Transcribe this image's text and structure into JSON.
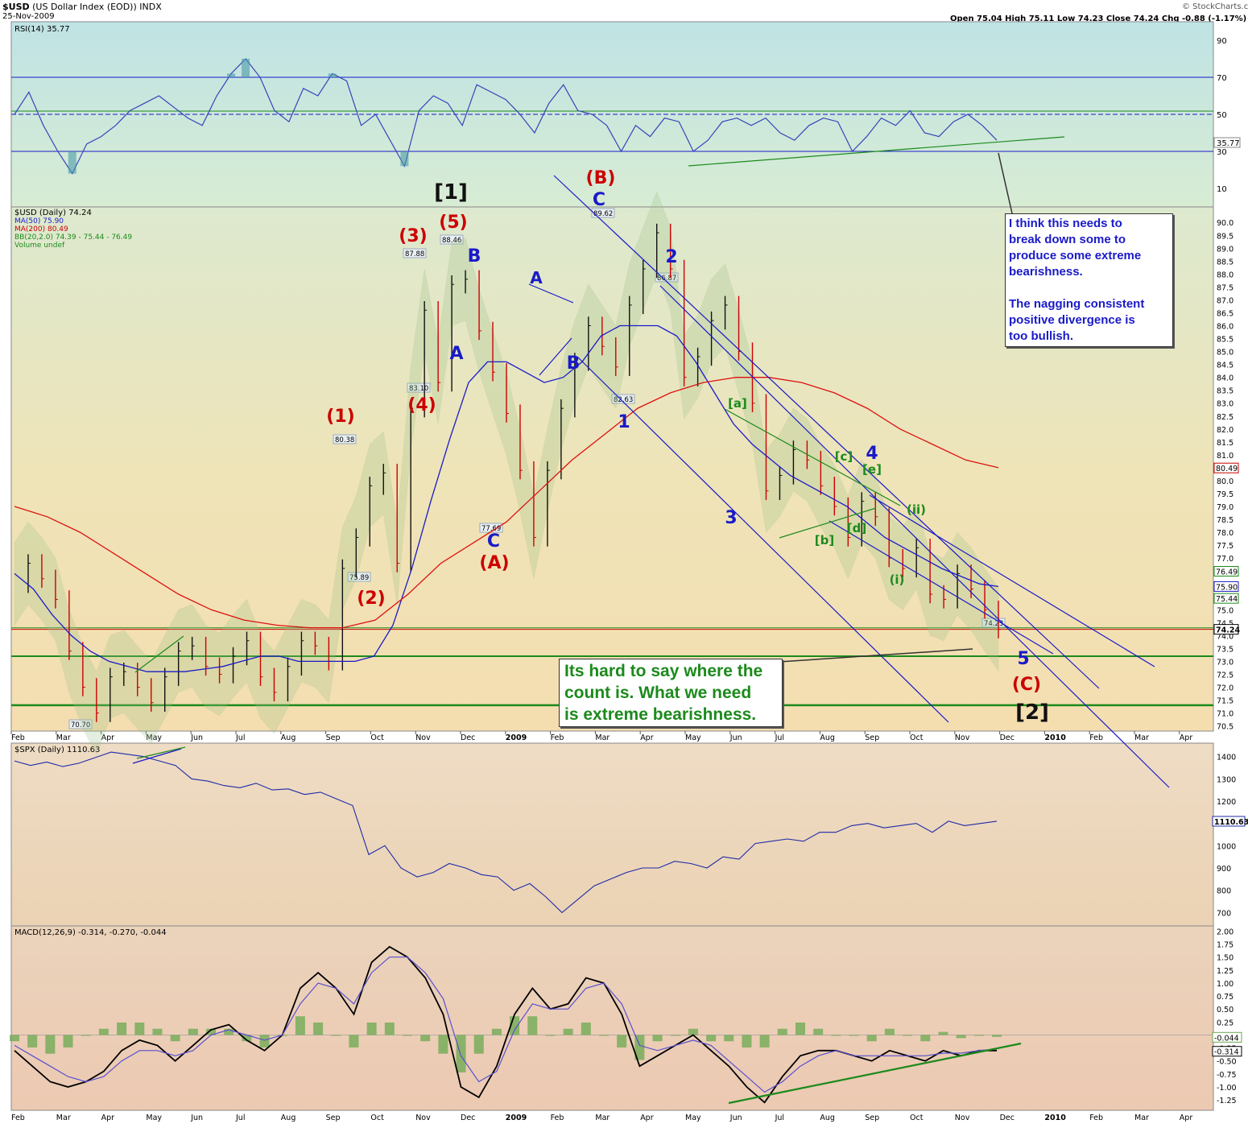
{
  "header": {
    "symbol": "$USD",
    "name": "(US Dollar Index (EOD))",
    "exchange": "INDX",
    "date": "25-Nov-2009",
    "ohlc": "Open 75.04  High 75.11  Low 74.23  Close 74.24  Chg -0.88 (-1.17%)",
    "watermark": "© StockCharts.com"
  },
  "colors": {
    "red": "#cc0000",
    "blue": "#1a1ac8",
    "green": "#1c8a1c",
    "black": "#111111"
  },
  "chart_data": [
    {
      "type": "line",
      "panel": "RSI",
      "legend": "RSI(14) 35.77",
      "ylim": [
        0,
        100
      ],
      "y_ticks": [
        "90",
        "70",
        "50",
        "30",
        "10"
      ],
      "last_value": "35.77",
      "series": [
        {
          "name": "RSI(14)",
          "values": [
            50,
            62,
            44,
            30,
            18,
            34,
            38,
            44,
            52,
            56,
            60,
            54,
            48,
            44,
            60,
            72,
            80,
            70,
            52,
            46,
            64,
            60,
            72,
            68,
            44,
            50,
            36,
            22,
            52,
            60,
            56,
            44,
            66,
            62,
            58,
            50,
            40,
            56,
            66,
            52,
            50,
            44,
            30,
            44,
            38,
            48,
            46,
            30,
            36,
            46,
            48,
            44,
            48,
            40,
            36,
            44,
            48,
            46,
            30,
            38,
            48,
            44,
            52,
            40,
            38,
            46,
            50,
            44,
            36
          ]
        }
      ]
    },
    {
      "type": "line",
      "panel": "Price",
      "legend": [
        "$USD (Daily) 74.24",
        "MA(50) 75.90",
        "MA(200) 80.49",
        "BB(20,2.0) 74.39 - 75.44 - 76.49",
        "Volume undef"
      ],
      "ylim": [
        70.3,
        90.6
      ],
      "y_ticks": [
        "90.0",
        "89.5",
        "89.0",
        "88.5",
        "88.0",
        "87.5",
        "87.0",
        "86.5",
        "86.0",
        "85.5",
        "85.0",
        "84.5",
        "84.0",
        "83.5",
        "83.0",
        "82.5",
        "82.0",
        "81.5",
        "81.0",
        "80.5",
        "80.0",
        "79.5",
        "79.0",
        "78.5",
        "78.0",
        "77.5",
        "77.0",
        "76.5",
        "76.0",
        "75.5",
        "75.0",
        "74.5",
        "74.0",
        "73.5",
        "73.0",
        "72.5",
        "72.0",
        "71.5",
        "71.0",
        "70.5"
      ],
      "x_labels": [
        "Feb",
        "Mar",
        "Apr",
        "May",
        "Jun",
        "Jul",
        "Aug",
        "Sep",
        "Oct",
        "Nov",
        "Dec",
        "2009",
        "Feb",
        "Mar",
        "Apr",
        "May",
        "Jun",
        "Jul",
        "Aug",
        "Sep",
        "Oct",
        "Nov",
        "Dec",
        "2010",
        "Feb",
        "Mar",
        "Apr"
      ],
      "value_tags": [
        "80.49",
        "76.49",
        "75.90",
        "75.44",
        "74.24"
      ],
      "price_labels": [
        "89.62",
        "88.46",
        "87.88",
        "86.87",
        "83.10",
        "82.63",
        "80.38",
        "77.69",
        "75.89",
        "74.23",
        "70.70"
      ],
      "series": [
        {
          "name": "$USD",
          "values": [
            76.0,
            76.8,
            76.2,
            75.4,
            73.4,
            72.0,
            71.0,
            72.4,
            72.6,
            72.0,
            71.4,
            72.4,
            73.4,
            73.6,
            72.8,
            72.5,
            73.2,
            73.8,
            72.4,
            71.8,
            72.8,
            73.8,
            73.6,
            73.0,
            76.6,
            77.8,
            79.8,
            80.3,
            76.8,
            82.8,
            86.6,
            83.8,
            87.6,
            87.8,
            85.8,
            84.2,
            82.6,
            80.4,
            77.8,
            80.4,
            82.8,
            84.6,
            86.0,
            85.2,
            84.4,
            86.8,
            88.2,
            89.6,
            88.2,
            84.0,
            84.8,
            86.2,
            86.8,
            85.0,
            83.0,
            79.6,
            80.2,
            81.2,
            80.8,
            79.8,
            79.0,
            77.8,
            79.2,
            78.6,
            77.0,
            76.6,
            77.4,
            75.6,
            75.4,
            76.4,
            75.8,
            75.0,
            74.24
          ]
        },
        {
          "name": "MA(50)",
          "values": [
            76.4,
            75.8,
            74.8,
            74.0,
            73.4,
            73.0,
            72.8,
            72.6,
            72.6,
            72.6,
            72.7,
            72.8,
            73.0,
            73.2,
            73.2,
            73.0,
            73.0,
            73.0,
            73.0,
            73.2,
            74.4,
            76.6,
            79.2,
            81.6,
            83.8,
            84.6,
            84.6,
            84.2,
            83.8,
            84.0,
            84.6,
            85.6,
            86.0,
            86.0,
            86.0,
            85.6,
            84.6,
            83.4,
            82.2,
            81.4,
            80.8,
            80.2,
            79.8,
            79.4,
            79.0,
            78.4,
            77.8,
            77.4,
            77.0,
            76.6,
            76.3,
            76.0,
            75.9
          ]
        },
        {
          "name": "MA(200)",
          "values": [
            79.0,
            78.6,
            78.0,
            77.2,
            76.4,
            75.6,
            75.0,
            74.6,
            74.4,
            74.3,
            74.3,
            74.6,
            75.6,
            76.8,
            77.6,
            78.4,
            79.6,
            80.8,
            81.8,
            82.8,
            83.4,
            83.8,
            84.0,
            84.0,
            83.8,
            83.4,
            82.8,
            82.0,
            81.4,
            80.8,
            80.5
          ]
        }
      ]
    },
    {
      "type": "line",
      "panel": "SPX",
      "legend": "$SPX (Daily) 1110.63",
      "ylim": [
        640,
        1460
      ],
      "y_ticks": [
        "1400",
        "1300",
        "1200",
        "1100",
        "1000",
        "900",
        "800",
        "700"
      ],
      "last_value": "1110.63",
      "series": [
        {
          "name": "$SPX",
          "values": [
            1380,
            1360,
            1375,
            1355,
            1370,
            1395,
            1420,
            1410,
            1400,
            1380,
            1360,
            1300,
            1290,
            1270,
            1260,
            1280,
            1250,
            1255,
            1230,
            1240,
            1210,
            1180,
            960,
            1000,
            900,
            860,
            880,
            920,
            900,
            870,
            860,
            800,
            830,
            770,
            700,
            760,
            820,
            850,
            880,
            900,
            900,
            930,
            920,
            900,
            950,
            940,
            1010,
            1020,
            1030,
            1020,
            1060,
            1060,
            1090,
            1100,
            1080,
            1090,
            1100,
            1060,
            1110,
            1090,
            1100,
            1110
          ]
        }
      ]
    },
    {
      "type": "line",
      "panel": "MACD",
      "legend": "MACD(12,26,9) -0.314, -0.270, -0.044",
      "ylim": [
        -1.45,
        2.1
      ],
      "y_ticks": [
        "2.00",
        "1.75",
        "1.50",
        "1.25",
        "1.00",
        "0.75",
        "0.50",
        "0.25",
        "0.00",
        "-0.25",
        "-0.50",
        "-0.75",
        "-1.00",
        "-1.25"
      ],
      "value_tags": [
        "-0.044",
        "-0.314"
      ],
      "series": [
        {
          "name": "MACD",
          "values": [
            -0.3,
            -0.6,
            -0.9,
            -1.0,
            -0.9,
            -0.7,
            -0.3,
            -0.1,
            -0.2,
            -0.5,
            -0.2,
            0.1,
            0.2,
            -0.1,
            -0.3,
            0.0,
            0.9,
            1.2,
            0.9,
            0.4,
            1.4,
            1.7,
            1.5,
            1.1,
            0.4,
            -1.0,
            -1.2,
            -0.6,
            0.4,
            0.9,
            0.5,
            0.6,
            1.1,
            1.0,
            0.4,
            -0.6,
            -0.4,
            -0.2,
            0.0,
            -0.3,
            -0.6,
            -1.0,
            -1.3,
            -0.8,
            -0.4,
            -0.3,
            -0.3,
            -0.4,
            -0.5,
            -0.3,
            -0.4,
            -0.5,
            -0.3,
            -0.4,
            -0.3,
            -0.3
          ]
        },
        {
          "name": "Signal",
          "values": [
            -0.2,
            -0.4,
            -0.6,
            -0.8,
            -0.9,
            -0.8,
            -0.5,
            -0.3,
            -0.3,
            -0.4,
            -0.3,
            0.0,
            0.1,
            0.0,
            -0.1,
            0.0,
            0.6,
            1.0,
            0.9,
            0.6,
            1.2,
            1.5,
            1.5,
            1.2,
            0.7,
            -0.4,
            -0.9,
            -0.7,
            0.1,
            0.6,
            0.5,
            0.5,
            0.9,
            1.0,
            0.6,
            -0.2,
            -0.3,
            -0.2,
            -0.1,
            -0.2,
            -0.5,
            -0.8,
            -1.1,
            -0.9,
            -0.6,
            -0.4,
            -0.3,
            -0.4,
            -0.4,
            -0.4,
            -0.4,
            -0.4,
            -0.35,
            -0.35,
            -0.3,
            -0.27
          ]
        }
      ]
    }
  ],
  "annotations": {
    "wave_labels": [
      {
        "text": "[1]",
        "color": "black"
      },
      {
        "text": "(B)",
        "color": "red"
      },
      {
        "text": "C",
        "color": "blue"
      },
      {
        "text": "(5)",
        "color": "red"
      },
      {
        "text": "(3)",
        "color": "red"
      },
      {
        "text": "B",
        "color": "blue"
      },
      {
        "text": "A",
        "color": "blue"
      },
      {
        "text": "2",
        "color": "blue"
      },
      {
        "text": "A",
        "color": "blue"
      },
      {
        "text": "B",
        "color": "blue"
      },
      {
        "text": "1",
        "color": "blue"
      },
      {
        "text": "(4)",
        "color": "red"
      },
      {
        "text": "(1)",
        "color": "red"
      },
      {
        "text": "[a]",
        "color": "green"
      },
      {
        "text": "4",
        "color": "blue"
      },
      {
        "text": "[c]",
        "color": "green"
      },
      {
        "text": "[e]",
        "color": "green"
      },
      {
        "text": "(ii)",
        "color": "green"
      },
      {
        "text": "C",
        "color": "blue"
      },
      {
        "text": "(A)",
        "color": "red"
      },
      {
        "text": "3",
        "color": "blue"
      },
      {
        "text": "[b]",
        "color": "green"
      },
      {
        "text": "[d]",
        "color": "green"
      },
      {
        "text": "(i)",
        "color": "green"
      },
      {
        "text": "(2)",
        "color": "red"
      },
      {
        "text": "5",
        "color": "blue"
      },
      {
        "text": "(C)",
        "color": "red"
      },
      {
        "text": "[2]",
        "color": "black"
      }
    ],
    "note_top": [
      "I think this needs to",
      "break down some to",
      "produce some extreme",
      "bearishness.",
      "",
      "The nagging consistent",
      "positive divergence is",
      "too bullish."
    ],
    "note_bottom": [
      "Its hard to say where the",
      "count is.  What we need",
      "is extreme bearishness."
    ]
  }
}
